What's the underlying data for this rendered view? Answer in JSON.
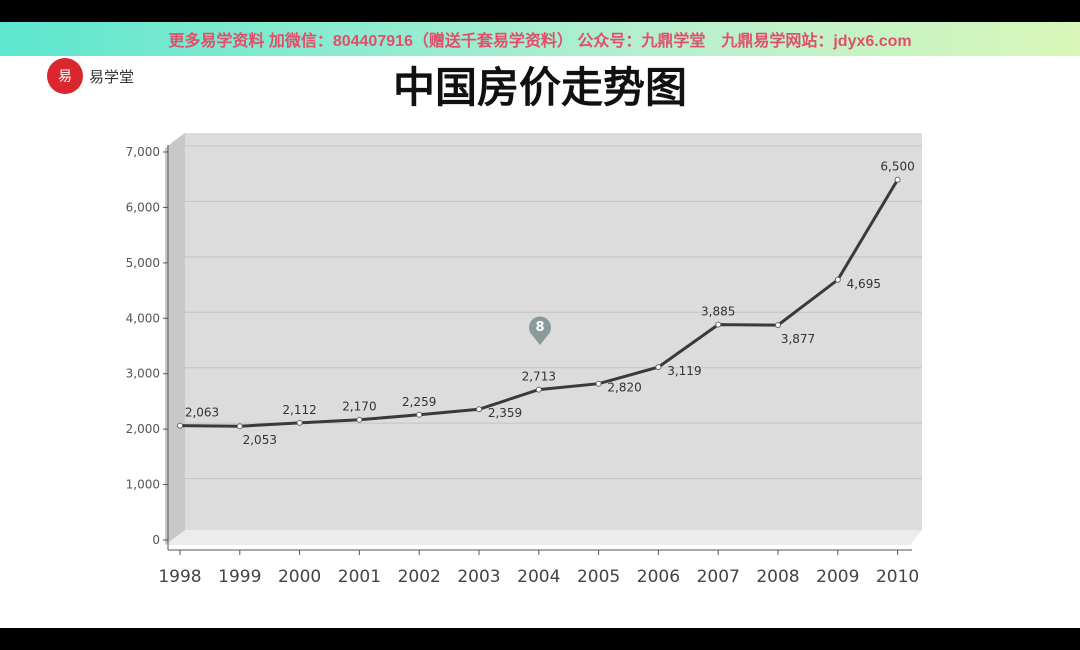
{
  "banner": "更多易学资料 加微信：804407916（赠送千套易学资料） 公众号：九鼎学堂　九鼎易学网站：jdyx6.com",
  "logo": {
    "text": "易学堂",
    "mark": "易"
  },
  "chart_data": {
    "type": "line",
    "title": "中国房价走势图",
    "categories": [
      "1998",
      "1999",
      "2000",
      "2001",
      "2002",
      "2003",
      "2004",
      "2005",
      "2006",
      "2007",
      "2008",
      "2009",
      "2010"
    ],
    "values": [
      2063,
      2053,
      2112,
      2170,
      2259,
      2359,
      2713,
      2820,
      3119,
      3885,
      3877,
      4695,
      6500
    ],
    "labels": [
      "2,063",
      "2,053",
      "2,112",
      "2,170",
      "2,259",
      "2,359",
      "2,713",
      "2,820",
      "3,119",
      "3,885",
      "3,877",
      "4,695",
      "6,500"
    ],
    "yticks": [
      "0",
      "1,000",
      "2,000",
      "3,000",
      "4,000",
      "5,000",
      "6,000",
      "7,000"
    ],
    "ylim": [
      0,
      7000
    ],
    "grid": true,
    "line_color": "#3a3a3a",
    "marker_label": "8"
  }
}
